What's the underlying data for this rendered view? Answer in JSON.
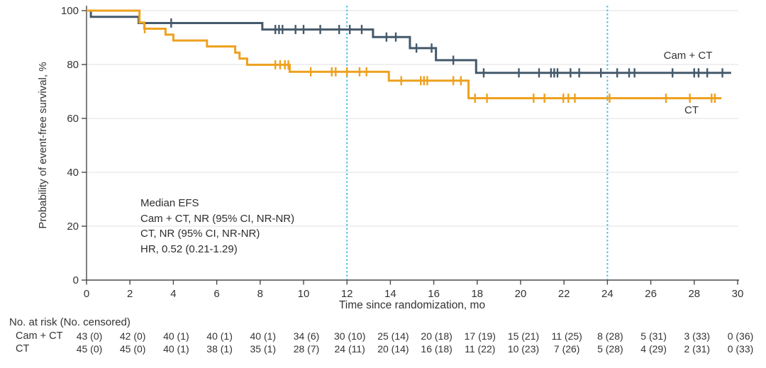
{
  "chart_data": {
    "type": "line",
    "variant": "kaplan_meier_step",
    "title": "",
    "xlabel": "Time since randomization, mo",
    "ylabel": "Probability of event-free survival, %",
    "xlim": [
      0,
      30
    ],
    "ylim": [
      0,
      100
    ],
    "xticks": [
      0,
      2,
      4,
      6,
      8,
      10,
      12,
      14,
      16,
      18,
      20,
      22,
      24,
      26,
      28,
      30
    ],
    "yticks": [
      0,
      20,
      40,
      60,
      80,
      100
    ],
    "grid": "horizontal gridlines at yticks above 0",
    "gridline_color": "#ECECEC",
    "axis_color": "#4A4A4A",
    "reference_lines_x": [
      12,
      24
    ],
    "reference_line_style": "dotted vertical",
    "reference_line_color": "#4FBCE9",
    "series": [
      {
        "name": "Cam + CT",
        "legend_label": "Cam + CT",
        "color": "#44596B",
        "steps": [
          [
            0,
            100
          ],
          [
            0.2,
            97.7
          ],
          [
            2.4,
            95.4
          ],
          [
            8.1,
            93.0
          ],
          [
            13.2,
            90.2
          ],
          [
            14.9,
            86.1
          ],
          [
            16.1,
            81.6
          ],
          [
            17.95,
            76.9
          ],
          [
            29.7,
            76.9
          ]
        ],
        "censor_marks": [
          3.9,
          8.7,
          8.87,
          9.03,
          9.63,
          10.0,
          10.77,
          11.64,
          12.13,
          12.68,
          13.82,
          14.25,
          15.2,
          15.9,
          16.9,
          18.3,
          19.92,
          20.85,
          21.4,
          21.55,
          21.7,
          22.3,
          22.7,
          23.7,
          24.45,
          25.0,
          25.25,
          27.0,
          28.0,
          28.2,
          28.6,
          29.3
        ]
      },
      {
        "name": "CT",
        "legend_label": "CT",
        "color": "#EEA11F",
        "steps": [
          [
            0,
            100
          ],
          [
            2.44,
            95.6
          ],
          [
            2.66,
            93.3
          ],
          [
            3.64,
            91.1
          ],
          [
            4.0,
            88.9
          ],
          [
            5.55,
            86.7
          ],
          [
            6.85,
            84.4
          ],
          [
            7.05,
            82.2
          ],
          [
            7.4,
            79.9
          ],
          [
            9.36,
            77.3
          ],
          [
            13.93,
            74.0
          ],
          [
            17.6,
            67.5
          ],
          [
            29.25,
            67.5
          ]
        ],
        "censor_marks": [
          2.68,
          8.7,
          8.92,
          9.14,
          9.3,
          10.33,
          11.3,
          11.48,
          12.0,
          12.58,
          12.9,
          14.5,
          15.4,
          15.55,
          15.7,
          16.9,
          17.25,
          17.9,
          18.45,
          20.6,
          21.1,
          21.97,
          22.2,
          22.5,
          24.1,
          26.7,
          27.8,
          28.8,
          28.95
        ]
      }
    ],
    "annotation": {
      "lines": [
        "Median EFS",
        "Cam + CT, NR (95% CI, NR-NR)",
        "CT, NR (95% CI, NR-NR)",
        "HR, 0.52 (0.21-1.29)"
      ]
    },
    "risk_table": {
      "header": "No. at risk (No. censored)",
      "times": [
        0,
        2,
        4,
        6,
        8,
        10,
        12,
        14,
        16,
        18,
        20,
        22,
        24,
        26,
        28,
        30
      ],
      "rows": [
        {
          "label": "Cam + CT",
          "values": [
            "43 (0)",
            "42 (0)",
            "40 (1)",
            "40 (1)",
            "40 (1)",
            "34 (6)",
            "30 (10)",
            "25 (14)",
            "20 (18)",
            "17 (19)",
            "15 (21)",
            "11 (25)",
            "8 (28)",
            "5 (31)",
            "3 (33)",
            "0 (36)"
          ]
        },
        {
          "label": "CT",
          "values": [
            "45 (0)",
            "45 (0)",
            "40 (1)",
            "38 (1)",
            "35 (1)",
            "28 (7)",
            "24 (11)",
            "20 (14)",
            "16 (18)",
            "11 (22)",
            "10 (23)",
            "7 (26)",
            "5 (28)",
            "4 (29)",
            "2 (31)",
            "0 (33)"
          ]
        }
      ]
    },
    "colors": {
      "text": "#333333",
      "background": "#FFFFFF"
    }
  }
}
